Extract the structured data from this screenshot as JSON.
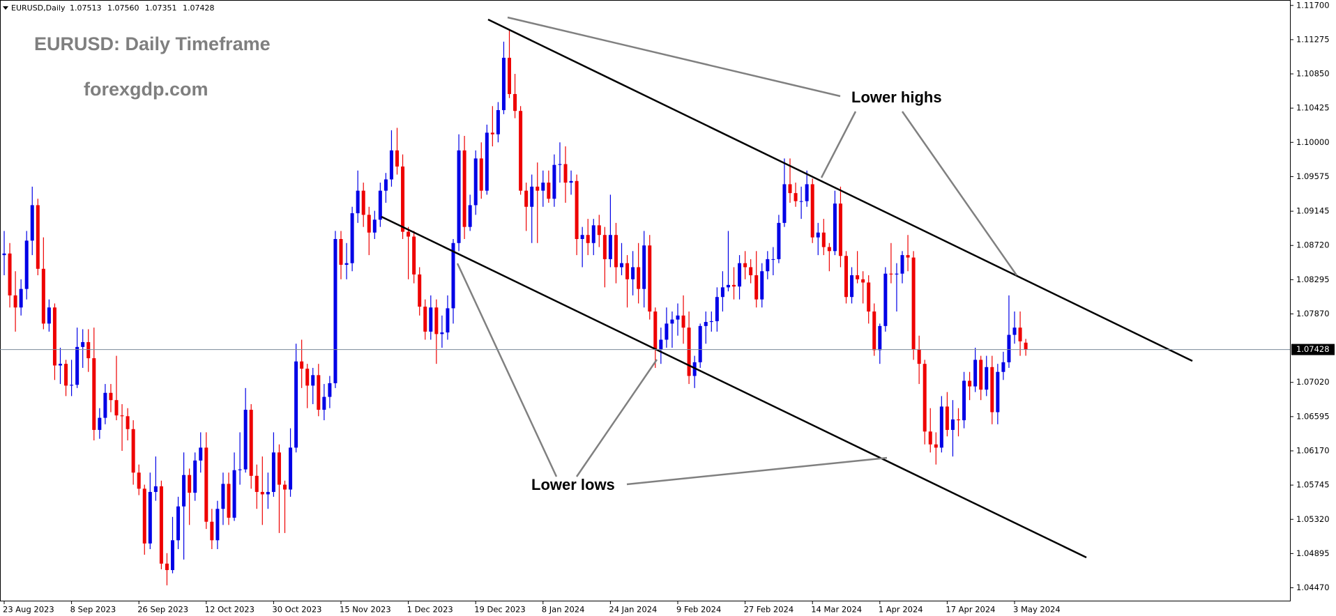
{
  "chart_data": {
    "type": "candlestick",
    "header": {
      "symbol": "EURUSD,Daily",
      "ohlc": [
        "1.07513",
        "1.07560",
        "1.07351",
        "1.07428"
      ]
    },
    "title": "EURUSD: Daily Timeframe",
    "subtitle": "forexgdp.com",
    "annotations": [
      "Lower highs",
      "Lower lows"
    ],
    "colors": {
      "up": "#0000e6",
      "down": "#ee0000"
    },
    "ylim": [
      1.0431,
      1.1175
    ],
    "yticks": [
      {
        "value": 1.117,
        "label": "1.11700"
      },
      {
        "value": 1.11275,
        "label": "1.11275"
      },
      {
        "value": 1.1085,
        "label": "1.10850"
      },
      {
        "value": 1.10425,
        "label": "1.10425"
      },
      {
        "value": 1.1,
        "label": "1.10000"
      },
      {
        "value": 1.09575,
        "label": "1.09575"
      },
      {
        "value": 1.09145,
        "label": "1.09145"
      },
      {
        "value": 1.0872,
        "label": "1.08720"
      },
      {
        "value": 1.08295,
        "label": "1.08295"
      },
      {
        "value": 1.0787,
        "label": "1.07870"
      },
      {
        "value": 1.0702,
        "label": "1.07020"
      },
      {
        "value": 1.06595,
        "label": "1.06595"
      },
      {
        "value": 1.0617,
        "label": "1.06170"
      },
      {
        "value": 1.05745,
        "label": "1.05745"
      },
      {
        "value": 1.0532,
        "label": "1.05320"
      },
      {
        "value": 1.04895,
        "label": "1.04895"
      },
      {
        "value": 1.0447,
        "label": "1.04470"
      }
    ],
    "current_price": {
      "value": 1.07428,
      "label": "1.07428"
    },
    "x_labels": [
      "23 Aug 2023",
      "8 Sep 2023",
      "26 Sep 2023",
      "12 Oct 2023",
      "30 Oct 2023",
      "15 Nov 2023",
      "1 Dec 2023",
      "19 Dec 2023",
      "8 Jan 2024",
      "24 Jan 2024",
      "9 Feb 2024",
      "27 Feb 2024",
      "14 Mar 2024",
      "1 Apr 2024",
      "17 Apr 2024",
      "3 May 2024"
    ],
    "candles": [
      [
        1.086,
        1.089,
        1.0835,
        1.0862
      ],
      [
        1.0862,
        1.0875,
        1.0795,
        1.081
      ],
      [
        1.081,
        1.084,
        1.0765,
        1.0795
      ],
      [
        1.0795,
        1.083,
        1.0785,
        1.0818
      ],
      [
        1.0818,
        1.089,
        1.0805,
        1.0878
      ],
      [
        1.0878,
        1.0945,
        1.086,
        1.0922
      ],
      [
        1.0922,
        1.093,
        1.0835,
        1.0843
      ],
      [
        1.0843,
        1.0882,
        1.0768,
        1.0775
      ],
      [
        1.0775,
        1.0805,
        1.0765,
        1.0795
      ],
      [
        1.0795,
        1.08,
        1.0705,
        1.0723
      ],
      [
        1.0723,
        1.0745,
        1.07,
        1.0725
      ],
      [
        1.0725,
        1.073,
        1.0685,
        1.0698
      ],
      [
        1.0698,
        1.073,
        1.0685,
        1.0699
      ],
      [
        1.0699,
        1.077,
        1.0695,
        1.0746
      ],
      [
        1.0746,
        1.0768,
        1.072,
        1.0752
      ],
      [
        1.0752,
        1.0768,
        1.0715,
        1.0732
      ],
      [
        1.0732,
        1.077,
        1.063,
        1.0643
      ],
      [
        1.0643,
        1.067,
        1.0632,
        1.0658
      ],
      [
        1.0658,
        1.07,
        1.065,
        1.0689
      ],
      [
        1.0689,
        1.07,
        1.0665,
        1.068
      ],
      [
        1.068,
        1.0735,
        1.0655,
        1.0661
      ],
      [
        1.0661,
        1.0675,
        1.0617,
        1.066
      ],
      [
        1.066,
        1.067,
        1.063,
        1.0644
      ],
      [
        1.0644,
        1.0655,
        1.0575,
        1.059
      ],
      [
        1.059,
        1.06,
        1.0562,
        1.057
      ],
      [
        1.057,
        1.0575,
        1.0488,
        1.0502
      ],
      [
        1.0502,
        1.059,
        1.0495,
        1.0566
      ],
      [
        1.0566,
        1.061,
        1.0555,
        1.0573
      ],
      [
        1.0573,
        1.058,
        1.047,
        1.0477
      ],
      [
        1.0477,
        1.049,
        1.045,
        1.0469
      ],
      [
        1.0469,
        1.0535,
        1.0465,
        1.0506
      ],
      [
        1.0506,
        1.056,
        1.0495,
        1.0548
      ],
      [
        1.0548,
        1.0615,
        1.0482,
        1.0587
      ],
      [
        1.0587,
        1.0595,
        1.0525,
        1.0565
      ],
      [
        1.0565,
        1.0615,
        1.0555,
        1.0605
      ],
      [
        1.0605,
        1.064,
        1.059,
        1.0621
      ],
      [
        1.0621,
        1.064,
        1.052,
        1.0529
      ],
      [
        1.0529,
        1.0545,
        1.0495,
        1.0506
      ],
      [
        1.0506,
        1.0555,
        1.0495,
        1.0545
      ],
      [
        1.0545,
        1.059,
        1.0525,
        1.0576
      ],
      [
        1.0576,
        1.059,
        1.0525,
        1.0534
      ],
      [
        1.0534,
        1.0615,
        1.053,
        1.0593
      ],
      [
        1.0593,
        1.064,
        1.0575,
        1.0594
      ],
      [
        1.0594,
        1.0695,
        1.059,
        1.0668
      ],
      [
        1.0668,
        1.0675,
        1.057,
        1.0586
      ],
      [
        1.0586,
        1.06,
        1.0545,
        1.0566
      ],
      [
        1.0566,
        1.061,
        1.0525,
        1.0563
      ],
      [
        1.0563,
        1.059,
        1.0545,
        1.0566
      ],
      [
        1.0566,
        1.064,
        1.056,
        1.0615
      ],
      [
        1.0615,
        1.0625,
        1.0515,
        1.0575
      ],
      [
        1.0575,
        1.058,
        1.0515,
        1.0569
      ],
      [
        1.0569,
        1.0645,
        1.056,
        1.0621
      ],
      [
        1.0621,
        1.075,
        1.0615,
        1.0728
      ],
      [
        1.0728,
        1.0755,
        1.0695,
        1.0719
      ],
      [
        1.0719,
        1.0725,
        1.067,
        1.0698
      ],
      [
        1.0698,
        1.072,
        1.0675,
        1.0711
      ],
      [
        1.0711,
        1.0725,
        1.066,
        1.0668
      ],
      [
        1.0668,
        1.07,
        1.0655,
        1.0684
      ],
      [
        1.0684,
        1.071,
        1.067,
        1.0701
      ],
      [
        1.0701,
        1.089,
        1.0695,
        1.088
      ],
      [
        1.088,
        1.089,
        1.083,
        1.0848
      ],
      [
        1.0848,
        1.0875,
        1.083,
        1.085
      ],
      [
        1.085,
        1.092,
        1.084,
        1.0912
      ],
      [
        1.0912,
        1.0965,
        1.09,
        1.094
      ],
      [
        1.094,
        1.095,
        1.0895,
        1.091
      ],
      [
        1.091,
        1.092,
        1.086,
        1.0888
      ],
      [
        1.0888,
        1.0915,
        1.088,
        1.0904
      ],
      [
        1.0904,
        1.095,
        1.0895,
        1.094
      ],
      [
        1.094,
        1.0962,
        1.0925,
        1.0954
      ],
      [
        1.0954,
        1.1015,
        1.0945,
        1.099
      ],
      [
        1.099,
        1.1018,
        1.096,
        1.097
      ],
      [
        1.097,
        1.0985,
        1.088,
        1.0889
      ],
      [
        1.0889,
        1.0895,
        1.083,
        1.0883
      ],
      [
        1.0883,
        1.089,
        1.0825,
        1.0836
      ],
      [
        1.0836,
        1.0845,
        1.0785,
        1.0796
      ],
      [
        1.0796,
        1.0805,
        1.0755,
        1.0765
      ],
      [
        1.0765,
        1.081,
        1.0755,
        1.0795
      ],
      [
        1.0795,
        1.0805,
        1.0725,
        1.0762
      ],
      [
        1.0762,
        1.0785,
        1.0745,
        1.0764
      ],
      [
        1.0764,
        1.081,
        1.0755,
        1.0794
      ],
      [
        1.0794,
        1.088,
        1.0775,
        1.0875
      ],
      [
        1.0875,
        1.101,
        1.0865,
        1.099
      ],
      [
        1.099,
        1.1008,
        1.088,
        1.0895
      ],
      [
        1.0895,
        1.0935,
        1.089,
        1.0922
      ],
      [
        1.0922,
        1.099,
        1.091,
        1.098
      ],
      [
        1.098,
        1.1,
        1.093,
        1.094
      ],
      [
        1.094,
        1.1022,
        1.0935,
        1.1012
      ],
      [
        1.1012,
        1.1045,
        1.0995,
        1.101
      ],
      [
        1.101,
        1.105,
        1.1,
        1.104
      ],
      [
        1.104,
        1.1125,
        1.1035,
        1.1105
      ],
      [
        1.1105,
        1.114,
        1.1055,
        1.106
      ],
      [
        1.106,
        1.1085,
        1.103,
        1.1039
      ],
      [
        1.1039,
        1.1045,
        1.0935,
        1.094
      ],
      [
        1.094,
        1.095,
        1.089,
        1.092
      ],
      [
        1.092,
        1.096,
        1.0875,
        1.0945
      ],
      [
        1.0945,
        1.0975,
        1.0875,
        1.094
      ],
      [
        1.094,
        1.0965,
        1.092,
        1.095
      ],
      [
        1.095,
        1.0965,
        1.0925,
        1.093
      ],
      [
        1.093,
        1.0985,
        1.092,
        1.0972
      ],
      [
        1.0972,
        1.1,
        1.095,
        1.0973
      ],
      [
        1.0973,
        1.0995,
        1.0925,
        1.095
      ],
      [
        1.095,
        1.0965,
        1.0935,
        1.0952
      ],
      [
        1.0952,
        1.096,
        1.086,
        1.088
      ],
      [
        1.088,
        1.0895,
        1.0845,
        1.0885
      ],
      [
        1.0885,
        1.0905,
        1.086,
        1.0875
      ],
      [
        1.0875,
        1.0905,
        1.086,
        1.0897
      ],
      [
        1.0897,
        1.091,
        1.087,
        1.0885
      ],
      [
        1.0885,
        1.0895,
        1.082,
        1.0855
      ],
      [
        1.0855,
        1.0935,
        1.0845,
        1.0885
      ],
      [
        1.0885,
        1.09,
        1.0825,
        1.0845
      ],
      [
        1.0845,
        1.0875,
        1.0835,
        1.085
      ],
      [
        1.085,
        1.086,
        1.0795,
        1.083
      ],
      [
        1.083,
        1.0865,
        1.081,
        1.0845
      ],
      [
        1.0845,
        1.0875,
        1.08,
        1.0818
      ],
      [
        1.0818,
        1.089,
        1.0795,
        1.0872
      ],
      [
        1.0872,
        1.0885,
        1.078,
        1.079
      ],
      [
        1.079,
        1.0795,
        1.072,
        1.0743
      ],
      [
        1.0743,
        1.077,
        1.0725,
        1.0755
      ],
      [
        1.0755,
        1.0795,
        1.0745,
        1.0775
      ],
      [
        1.0775,
        1.079,
        1.0745,
        1.078
      ],
      [
        1.078,
        1.08,
        1.076,
        1.0785
      ],
      [
        1.0785,
        1.081,
        1.075,
        1.077
      ],
      [
        1.077,
        1.079,
        1.07,
        1.071
      ],
      [
        1.071,
        1.0735,
        1.0695,
        1.0727
      ],
      [
        1.0727,
        1.0775,
        1.072,
        1.0772
      ],
      [
        1.0772,
        1.079,
        1.075,
        1.0777
      ],
      [
        1.0777,
        1.079,
        1.0765,
        1.0778
      ],
      [
        1.0778,
        1.082,
        1.0765,
        1.0808
      ],
      [
        1.0808,
        1.084,
        1.079,
        1.082
      ],
      [
        1.082,
        1.089,
        1.0815,
        1.0823
      ],
      [
        1.0823,
        1.0845,
        1.0805,
        1.0821
      ],
      [
        1.0821,
        1.086,
        1.0805,
        1.085
      ],
      [
        1.085,
        1.0865,
        1.083,
        1.0845
      ],
      [
        1.0845,
        1.0855,
        1.0825,
        1.0835
      ],
      [
        1.0835,
        1.0865,
        1.0795,
        1.0805
      ],
      [
        1.0805,
        1.085,
        1.0795,
        1.084
      ],
      [
        1.084,
        1.0865,
        1.083,
        1.0855
      ],
      [
        1.0855,
        1.087,
        1.0835,
        1.0855
      ],
      [
        1.0855,
        1.091,
        1.085,
        1.09
      ],
      [
        1.09,
        1.098,
        1.0895,
        1.0948
      ],
      [
        1.0948,
        1.098,
        1.0925,
        1.0937
      ],
      [
        1.0937,
        1.095,
        1.092,
        1.0927
      ],
      [
        1.0927,
        1.0945,
        1.0905,
        1.0927
      ],
      [
        1.0927,
        1.0965,
        1.092,
        1.0948
      ],
      [
        1.0948,
        1.0955,
        1.0875,
        1.0882
      ],
      [
        1.0882,
        1.09,
        1.086,
        1.0888
      ],
      [
        1.0888,
        1.0905,
        1.086,
        1.087
      ],
      [
        1.087,
        1.0875,
        1.084,
        1.0865
      ],
      [
        1.0865,
        1.094,
        1.086,
        1.0924
      ],
      [
        1.0924,
        1.0945,
        1.0845,
        1.0859
      ],
      [
        1.0859,
        1.0865,
        1.08,
        1.0808
      ],
      [
        1.0808,
        1.0845,
        1.08,
        1.0835
      ],
      [
        1.0835,
        1.0865,
        1.0825,
        1.083
      ],
      [
        1.083,
        1.084,
        1.08,
        1.0826
      ],
      [
        1.0826,
        1.0835,
        1.0775,
        1.079
      ],
      [
        1.079,
        1.08,
        1.0735,
        1.0742
      ],
      [
        1.0742,
        1.0775,
        1.0725,
        1.0772
      ],
      [
        1.0772,
        1.0845,
        1.0765,
        1.0837
      ],
      [
        1.0837,
        1.0875,
        1.0825,
        1.0836
      ],
      [
        1.0836,
        1.085,
        1.079,
        1.0837
      ],
      [
        1.0837,
        1.0865,
        1.0825,
        1.086
      ],
      [
        1.086,
        1.0885,
        1.084,
        1.0857
      ],
      [
        1.0857,
        1.0865,
        1.073,
        1.0743
      ],
      [
        1.0743,
        1.076,
        1.07,
        1.0725
      ],
      [
        1.0725,
        1.073,
        1.0625,
        1.0641
      ],
      [
        1.0641,
        1.067,
        1.0615,
        1.0625
      ],
      [
        1.0625,
        1.064,
        1.06,
        1.0621
      ],
      [
        1.0621,
        1.0685,
        1.0615,
        1.0672
      ],
      [
        1.0672,
        1.069,
        1.0635,
        1.0643
      ],
      [
        1.0643,
        1.068,
        1.061,
        1.0656
      ],
      [
        1.0656,
        1.067,
        1.0635,
        1.0655
      ],
      [
        1.0655,
        1.0715,
        1.0645,
        1.0704
      ],
      [
        1.0704,
        1.0715,
        1.068,
        1.0697
      ],
      [
        1.0697,
        1.0745,
        1.069,
        1.073
      ],
      [
        1.073,
        1.0735,
        1.068,
        1.0693
      ],
      [
        1.0693,
        1.0735,
        1.0685,
        1.0721
      ],
      [
        1.0721,
        1.0735,
        1.065,
        1.0665
      ],
      [
        1.0665,
        1.0725,
        1.065,
        1.0715
      ],
      [
        1.0715,
        1.074,
        1.0705,
        1.0727
      ],
      [
        1.0727,
        1.081,
        1.072,
        1.0761
      ],
      [
        1.0761,
        1.079,
        1.075,
        1.077
      ],
      [
        1.077,
        1.079,
        1.0735,
        1.0753
      ],
      [
        1.07513,
        1.0756,
        1.07351,
        1.07428
      ]
    ]
  }
}
